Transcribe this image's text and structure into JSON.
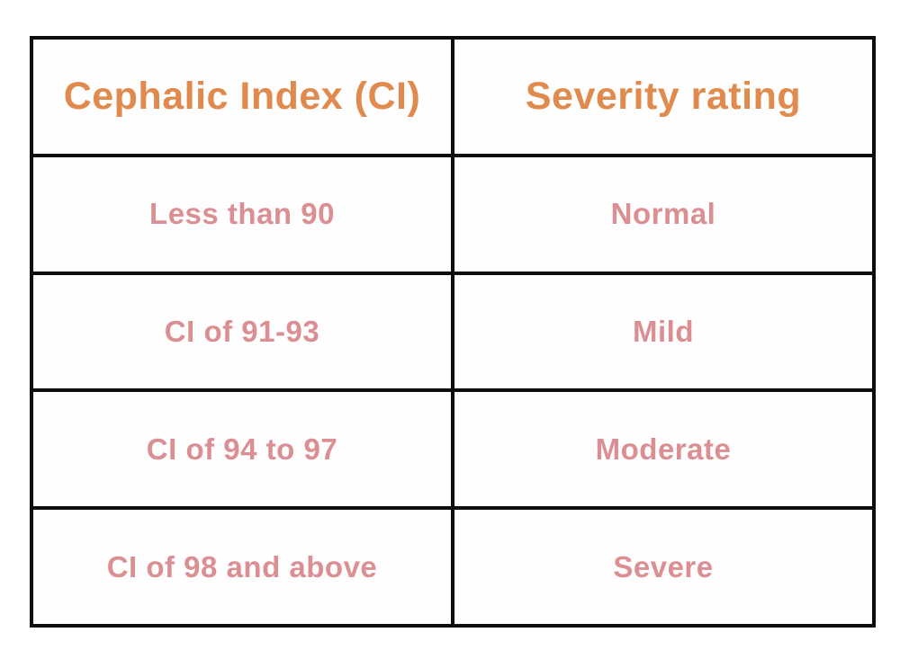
{
  "table": {
    "columns": [
      {
        "label": "Cephalic Index (CI)"
      },
      {
        "label": "Severity rating"
      }
    ],
    "rows": [
      {
        "ci": "Less than 90",
        "severity": "Normal"
      },
      {
        "ci": "CI of 91-93",
        "severity": "Mild"
      },
      {
        "ci": "CI of 94 to 97",
        "severity": "Moderate"
      },
      {
        "ci": "CI of 98 and above",
        "severity": "Severe"
      }
    ]
  },
  "colors": {
    "header_text": "#e08a4d",
    "body_text": "#db8f93",
    "border": "#0d0d0d",
    "background": "#ffffff"
  },
  "chart_data": {
    "type": "table",
    "title": "",
    "columns": [
      "Cephalic Index (CI)",
      "Severity rating"
    ],
    "rows": [
      [
        "Less than 90",
        "Normal"
      ],
      [
        "CI of 91-93",
        "Mild"
      ],
      [
        "CI of 94 to 97",
        "Moderate"
      ],
      [
        "CI of 98 and above",
        "Severe"
      ]
    ],
    "layout_hints": {
      "header_row": true,
      "grid": "thick black borders, all cells outlined",
      "header_text_color": "#e08a4d",
      "body_text_color": "#db8f93"
    }
  }
}
